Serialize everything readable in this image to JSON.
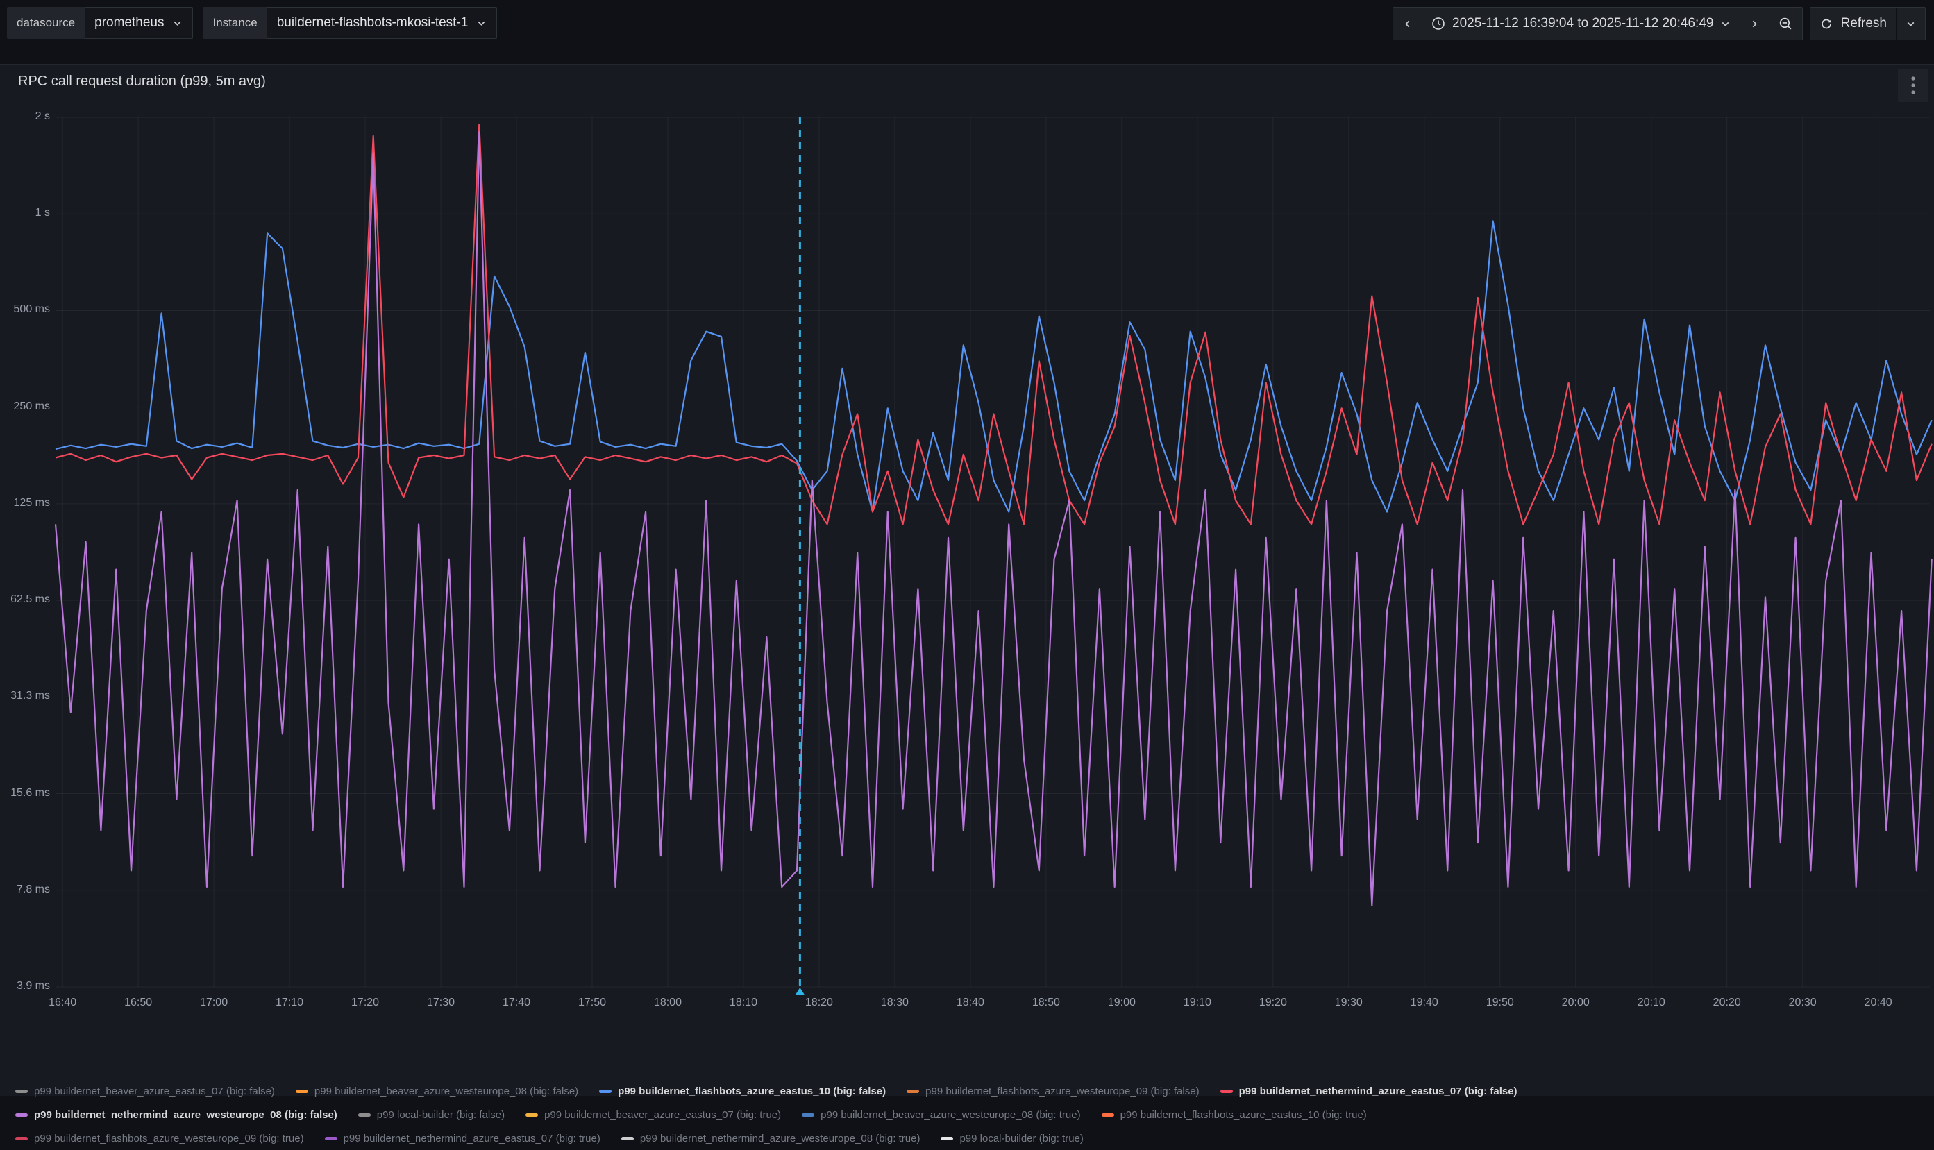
{
  "toolbar": {
    "datasource_label": "datasource",
    "datasource_value": "prometheus",
    "instance_label": "Instance",
    "instance_value": "buildernet-flashbots-mkosi-test-1",
    "time_range": "2025-11-12 16:39:04 to 2025-11-12 20:46:49",
    "refresh_label": "Refresh"
  },
  "panel": {
    "title": "RPC call request duration (p99, 5m avg)"
  },
  "chart_data": {
    "type": "line",
    "title": "RPC call request duration (p99, 5m avg)",
    "y_scale": "log2",
    "y_unit": "ms",
    "y_max": 2000,
    "y_doublings": 9,
    "y_ticks": [
      2000,
      1000,
      500,
      250,
      125,
      62.5,
      31.25,
      15.625,
      7.8125,
      3.90625
    ],
    "y_tick_labels": [
      "2 s",
      "1 s",
      "500 ms",
      "250 ms",
      "125 ms",
      "62.5 ms",
      "31.3 ms",
      "15.6 ms",
      "7.8 ms",
      "3.9 ms"
    ],
    "x_range_minutes": [
      0,
      247.75
    ],
    "x_start_time": "16:39:04",
    "x_end_time": "20:46:49",
    "x_tick_minutes": [
      0.93,
      10.93,
      20.93,
      30.93,
      40.93,
      50.93,
      60.93,
      70.93,
      80.93,
      90.93,
      100.93,
      110.93,
      120.93,
      130.93,
      140.93,
      150.93,
      160.93,
      170.93,
      180.93,
      190.93,
      200.93,
      210.93,
      220.93,
      230.93,
      240.93
    ],
    "x_tick_labels": [
      "16:40",
      "16:50",
      "17:00",
      "17:10",
      "17:20",
      "17:30",
      "17:40",
      "17:50",
      "18:00",
      "18:10",
      "18:20",
      "18:30",
      "18:40",
      "18:50",
      "19:00",
      "19:10",
      "19:20",
      "19:30",
      "19:40",
      "19:50",
      "20:00",
      "20:10",
      "20:20",
      "20:30",
      "20:40"
    ],
    "annotation": {
      "minute": 98.4,
      "color": "#2fb6e8"
    },
    "grid_color": "rgba(255,255,255,0.06)",
    "x_step_minutes": 2,
    "series": [
      {
        "name": "p99 buildernet_flashbots_azure_eastus_10 (big: false)",
        "color": "#5794f2",
        "values": [
          185,
          190,
          186,
          191,
          188,
          192,
          189,
          490,
          196,
          186,
          191,
          188,
          193,
          187,
          870,
          780,
          400,
          196,
          190,
          187,
          192,
          188,
          191,
          186,
          193,
          189,
          191,
          186,
          192,
          640,
          515,
          385,
          196,
          189,
          192,
          370,
          195,
          188,
          191,
          186,
          192,
          189,
          350,
          430,
          415,
          194,
          189,
          187,
          192,
          170,
          138,
          158,
          330,
          178,
          118,
          248,
          158,
          128,
          208,
          148,
          390,
          258,
          148,
          118,
          218,
          480,
          298,
          158,
          128,
          178,
          238,
          460,
          378,
          198,
          148,
          430,
          308,
          178,
          138,
          198,
          340,
          218,
          158,
          128,
          188,
          320,
          238,
          148,
          118,
          168,
          258,
          198,
          158,
          218,
          298,
          950,
          520,
          248,
          158,
          128,
          178,
          248,
          198,
          288,
          158,
          470,
          278,
          178,
          450,
          218,
          158,
          128,
          198,
          390,
          248,
          168,
          138,
          228,
          178,
          258,
          198,
          350,
          238,
          178,
          228
        ]
      },
      {
        "name": "p99 buildernet_nethermind_azure_eastus_07 (big: false)",
        "color": "#f2495c",
        "values": [
          174,
          179,
          171,
          177,
          169,
          175,
          179,
          174,
          177,
          149,
          174,
          179,
          175,
          171,
          177,
          179,
          175,
          171,
          177,
          144,
          174,
          1750,
          168,
          131,
          174,
          177,
          173,
          177,
          1900,
          175,
          171,
          177,
          173,
          177,
          149,
          175,
          171,
          177,
          173,
          169,
          175,
          171,
          177,
          173,
          177,
          171,
          175,
          169,
          177,
          167,
          128,
          108,
          178,
          238,
          118,
          158,
          108,
          198,
          138,
          108,
          178,
          128,
          238,
          158,
          108,
          348,
          198,
          128,
          108,
          168,
          218,
          418,
          258,
          148,
          108,
          298,
          428,
          198,
          128,
          108,
          298,
          178,
          128,
          108,
          158,
          248,
          178,
          555,
          298,
          148,
          108,
          168,
          128,
          198,
          548,
          278,
          158,
          108,
          138,
          178,
          298,
          158,
          108,
          198,
          258,
          148,
          108,
          228,
          168,
          128,
          278,
          158,
          108,
          188,
          238,
          138,
          108,
          258,
          178,
          128,
          198,
          158,
          278,
          148,
          192
        ]
      },
      {
        "name": "p99 buildernet_nethermind_azure_westeurope_08 (big: false)",
        "color": "#b877d9",
        "values": [
          108,
          28,
          95,
          12,
          78,
          9,
          58,
          118,
          15,
          88,
          8,
          68,
          128,
          10,
          84,
          24,
          138,
          12,
          92,
          8,
          72,
          1550,
          30,
          9,
          108,
          14,
          84,
          8,
          1800,
          38,
          12,
          98,
          9,
          68,
          138,
          11,
          88,
          8,
          58,
          118,
          10,
          78,
          15,
          128,
          9,
          72,
          12,
          48,
          8,
          9,
          148,
          30,
          10,
          88,
          8,
          118,
          14,
          68,
          9,
          98,
          12,
          58,
          8,
          108,
          20,
          9,
          84,
          128,
          10,
          68,
          8,
          92,
          13,
          118,
          9,
          58,
          138,
          11,
          78,
          8,
          98,
          15,
          68,
          9,
          128,
          10,
          88,
          7,
          58,
          108,
          13,
          78,
          9,
          138,
          11,
          72,
          8,
          98,
          14,
          58,
          9,
          118,
          10,
          84,
          8,
          128,
          12,
          68,
          9,
          92,
          15,
          138,
          8,
          64,
          11,
          98,
          9,
          72,
          128,
          8,
          88,
          12,
          58,
          9,
          84
        ]
      }
    ],
    "legend": [
      {
        "label": "p99 buildernet_beaver_azure_eastus_07 (big: false)",
        "color": "#8e8e8e",
        "bold": false
      },
      {
        "label": "p99 buildernet_beaver_azure_westeurope_08 (big: false)",
        "color": "#ff9830",
        "bold": false
      },
      {
        "label": "p99 buildernet_flashbots_azure_eastus_10 (big: false)",
        "color": "#5794f2",
        "bold": true
      },
      {
        "label": "p99 buildernet_flashbots_azure_westeurope_09 (big: false)",
        "color": "#e07b39",
        "bold": false
      },
      {
        "label": "p99 buildernet_nethermind_azure_eastus_07 (big: false)",
        "color": "#f2495c",
        "bold": true
      },
      {
        "label": "p99 buildernet_nethermind_azure_westeurope_08 (big: false)",
        "color": "#b877d9",
        "bold": true
      },
      {
        "label": "p99 local-builder (big: false)",
        "color": "#8e8e8e",
        "bold": false
      },
      {
        "label": "p99 buildernet_beaver_azure_eastus_07 (big: true)",
        "color": "#f2b13c",
        "bold": false
      },
      {
        "label": "p99 buildernet_beaver_azure_westeurope_08 (big: true)",
        "color": "#4a7dc2",
        "bold": false
      },
      {
        "label": "p99 buildernet_flashbots_azure_eastus_10 (big: true)",
        "color": "#ff6e42",
        "bold": false
      },
      {
        "label": "p99 buildernet_flashbots_azure_westeurope_09 (big: true)",
        "color": "#d4415a",
        "bold": false
      },
      {
        "label": "p99 buildernet_nethermind_azure_eastus_07 (big: true)",
        "color": "#9b59c9",
        "bold": false
      },
      {
        "label": "p99 buildernet_nethermind_azure_westeurope_08 (big: true)",
        "color": "#cfcfcf",
        "bold": false
      },
      {
        "label": "p99 local-builder (big: true)",
        "color": "#e6e6e6",
        "bold": false
      }
    ],
    "legend_rows": [
      5,
      5,
      4
    ]
  }
}
